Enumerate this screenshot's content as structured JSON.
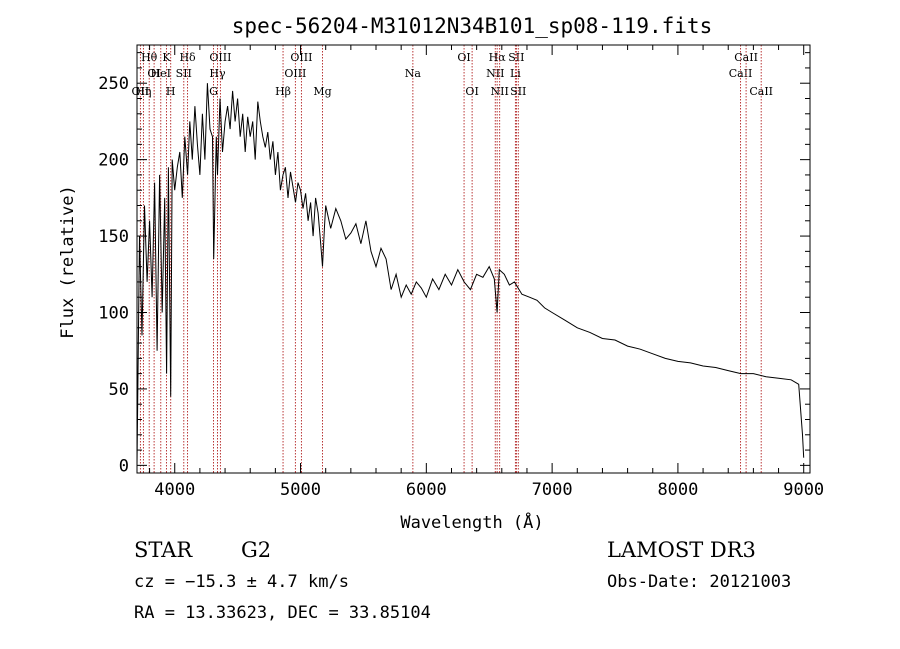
{
  "chart_data": {
    "type": "line",
    "title": "spec-56204-M31012N34B101_sp08-119.fits",
    "xlabel": "Wavelength (Å)",
    "ylabel": "Flux (relative)",
    "xlim": [
      3700,
      9050
    ],
    "ylim": [
      -5,
      275
    ],
    "x_ticks": [
      4000,
      5000,
      6000,
      7000,
      8000,
      9000
    ],
    "y_ticks": [
      0,
      50,
      100,
      150,
      200,
      250
    ],
    "series": [
      {
        "name": "flux",
        "x": [
          3700,
          3720,
          3740,
          3760,
          3780,
          3800,
          3820,
          3840,
          3860,
          3880,
          3900,
          3920,
          3935,
          3950,
          3968,
          3980,
          4000,
          4020,
          4040,
          4060,
          4080,
          4102,
          4120,
          4140,
          4160,
          4180,
          4200,
          4220,
          4240,
          4260,
          4280,
          4300,
          4310,
          4330,
          4340,
          4360,
          4380,
          4400,
          4420,
          4440,
          4460,
          4480,
          4500,
          4520,
          4540,
          4560,
          4580,
          4600,
          4620,
          4640,
          4660,
          4680,
          4700,
          4720,
          4740,
          4760,
          4780,
          4800,
          4820,
          4840,
          4861,
          4880,
          4900,
          4920,
          4940,
          4960,
          4980,
          5000,
          5020,
          5040,
          5060,
          5080,
          5100,
          5120,
          5140,
          5160,
          5175,
          5190,
          5200,
          5240,
          5280,
          5320,
          5360,
          5400,
          5440,
          5480,
          5520,
          5560,
          5600,
          5640,
          5680,
          5720,
          5760,
          5800,
          5840,
          5880,
          5920,
          5960,
          6000,
          6050,
          6100,
          6150,
          6200,
          6250,
          6300,
          6350,
          6400,
          6450,
          6500,
          6540,
          6563,
          6580,
          6620,
          6660,
          6700,
          6760,
          6820,
          6880,
          6940,
          7000,
          7100,
          7200,
          7300,
          7400,
          7500,
          7600,
          7700,
          7800,
          7900,
          8000,
          8100,
          8200,
          8300,
          8400,
          8500,
          8600,
          8700,
          8800,
          8900,
          8960,
          8990,
          9000
        ],
        "values": [
          0,
          150,
          85,
          170,
          120,
          160,
          110,
          185,
          75,
          190,
          100,
          175,
          60,
          195,
          45,
          200,
          180,
          195,
          205,
          175,
          215,
          190,
          225,
          200,
          235,
          210,
          190,
          230,
          200,
          250,
          220,
          215,
          135,
          215,
          190,
          240,
          205,
          225,
          235,
          220,
          245,
          225,
          240,
          215,
          230,
          205,
          228,
          215,
          225,
          200,
          238,
          225,
          215,
          208,
          218,
          200,
          212,
          190,
          205,
          180,
          190,
          195,
          175,
          192,
          182,
          172,
          185,
          180,
          168,
          178,
          160,
          172,
          150,
          175,
          165,
          145,
          130,
          155,
          170,
          155,
          168,
          160,
          148,
          152,
          158,
          145,
          160,
          140,
          130,
          142,
          135,
          115,
          125,
          110,
          118,
          112,
          120,
          116,
          110,
          122,
          115,
          125,
          118,
          128,
          120,
          115,
          125,
          123,
          130,
          122,
          100,
          128,
          125,
          118,
          120,
          112,
          110,
          108,
          103,
          100,
          95,
          90,
          87,
          83,
          82,
          78,
          76,
          73,
          70,
          68,
          67,
          65,
          64,
          62,
          60,
          60,
          58,
          57,
          56,
          53,
          20,
          5
        ]
      }
    ],
    "lines": [
      {
        "wave": 3727,
        "label": "OII",
        "row": 3
      },
      {
        "wave": 3751,
        "label": "Hη",
        "row": 3
      },
      {
        "wave": 3797,
        "label": "Hθ",
        "row": 1
      },
      {
        "wave": 3836,
        "label": "OI",
        "row": 2
      },
      {
        "wave": 3889,
        "label": "HeI",
        "row": 2
      },
      {
        "wave": 3934,
        "label": "K",
        "row": 1
      },
      {
        "wave": 3968,
        "label": "H",
        "row": 3
      },
      {
        "wave": 4072,
        "label": "SII",
        "row": 2
      },
      {
        "wave": 4102,
        "label": "Hδ",
        "row": 1
      },
      {
        "wave": 4308,
        "label": "G",
        "row": 3
      },
      {
        "wave": 4340,
        "label": "Hγ",
        "row": 2
      },
      {
        "wave": 4363,
        "label": "OIII",
        "row": 1
      },
      {
        "wave": 4861,
        "label": "Hβ",
        "row": 3
      },
      {
        "wave": 4959,
        "label": "OIII",
        "row": 2
      },
      {
        "wave": 5007,
        "label": "OIII",
        "row": 1
      },
      {
        "wave": 5175,
        "label": "Mg",
        "row": 3
      },
      {
        "wave": 5893,
        "label": "Na",
        "row": 2
      },
      {
        "wave": 6300,
        "label": "OI",
        "row": 1
      },
      {
        "wave": 6364,
        "label": "OI",
        "row": 3
      },
      {
        "wave": 6548,
        "label": "NII",
        "row": 2
      },
      {
        "wave": 6563,
        "label": "Hα",
        "row": 1
      },
      {
        "wave": 6583,
        "label": "NII",
        "row": 3
      },
      {
        "wave": 6708,
        "label": "Li",
        "row": 2
      },
      {
        "wave": 6716,
        "label": "SII",
        "row": 1
      },
      {
        "wave": 6731,
        "label": "SII",
        "row": 3
      },
      {
        "wave": 8498,
        "label": "CaII",
        "row": 2
      },
      {
        "wave": 8542,
        "label": "CaII",
        "row": 1
      },
      {
        "wave": 8662,
        "label": "CaII",
        "row": 3
      }
    ]
  },
  "info": {
    "class": "STAR",
    "subclass": "G2",
    "survey": "LAMOST DR3",
    "cz": "cz = −15.3 ± 4.7 km/s",
    "obs_date": "Obs-Date: 20121003",
    "coords": "RA =  13.33623, DEC =  33.85104"
  },
  "colors": {
    "spectrum": "#000000",
    "line_markers": "#b22222",
    "background": "#ffffff"
  }
}
